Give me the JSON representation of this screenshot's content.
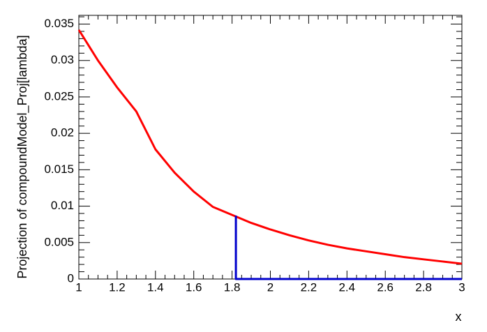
{
  "chart_data": {
    "type": "line",
    "x_label": "x",
    "y_label": "Projection of compoundModel_Proj[lambda]",
    "xlim": [
      1,
      3
    ],
    "ylim": [
      0,
      0.0362
    ],
    "xticks": [
      1,
      1.2,
      1.4,
      1.6,
      1.8,
      2,
      2.2,
      2.4,
      2.6,
      2.8,
      3
    ],
    "yticks": [
      0,
      0.005,
      0.01,
      0.015,
      0.02,
      0.025,
      0.03,
      0.035
    ],
    "series": [
      {
        "color": "#ff0000",
        "x": [
          1,
          1.1,
          1.2,
          1.3,
          1.4,
          1.5,
          1.6,
          1.7,
          1.8,
          1.9,
          2,
          2.1,
          2.2,
          2.3,
          2.4,
          2.5,
          2.6,
          2.7,
          2.8,
          2.9,
          3
        ],
        "values": [
          0.0342,
          0.03,
          0.0263,
          0.023,
          0.0178,
          0.0146,
          0.012,
          0.0099,
          0.0088,
          0.0077,
          0.0068,
          0.006,
          0.0053,
          0.0047,
          0.0042,
          0.0038,
          0.0034,
          0.003,
          0.0027,
          0.0024,
          0.0021
        ]
      },
      {
        "color": "#0000cc",
        "x": [
          1.82,
          1.82,
          3
        ],
        "values": [
          0.0087,
          0,
          0
        ]
      }
    ]
  }
}
